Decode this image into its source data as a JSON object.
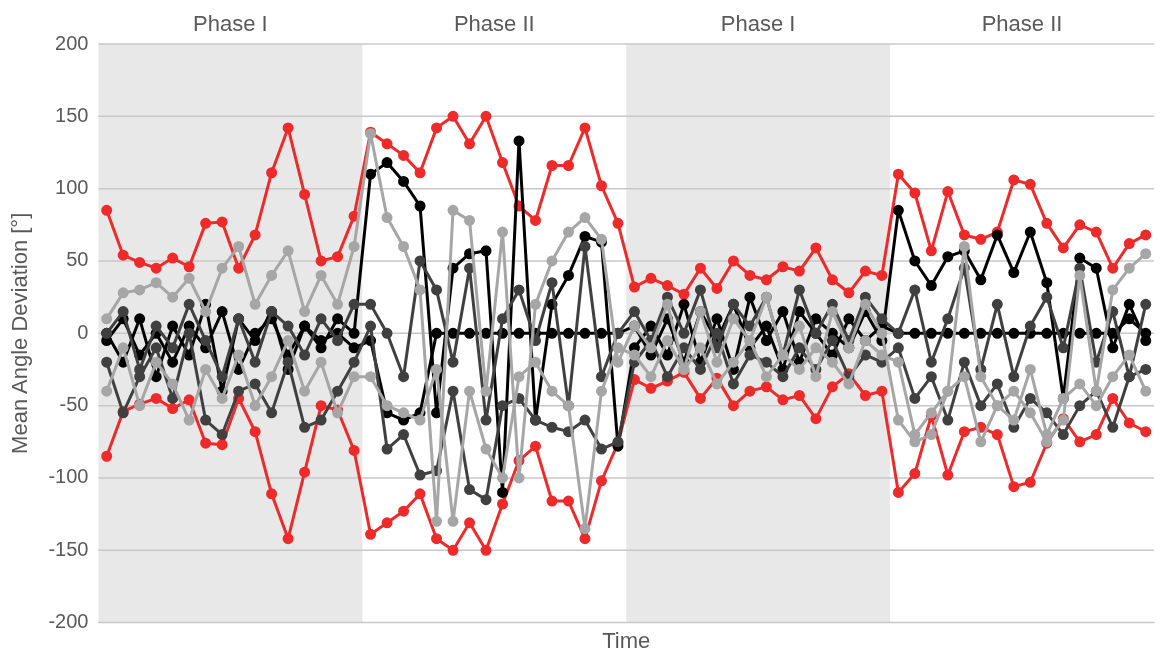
{
  "chart_data": {
    "type": "line",
    "xlabel": "Time",
    "ylabel": "Mean Angle Deviation [°]",
    "categories": [
      null,
      null,
      null,
      null,
      null,
      null,
      null,
      null,
      null,
      null,
      null,
      null,
      null,
      null,
      null,
      null,
      null,
      null,
      null,
      null,
      null,
      null,
      null,
      null,
      null,
      null,
      null,
      null,
      null,
      null,
      null,
      null,
      null,
      null,
      null,
      null,
      null,
      null,
      null,
      null,
      null,
      null,
      null,
      null,
      null,
      null,
      null,
      null,
      null,
      null,
      null,
      null,
      null,
      null,
      null,
      null,
      null,
      null,
      null,
      null,
      null,
      null,
      null,
      null
    ],
    "ylim": [
      -200,
      200
    ],
    "yticks": [
      -200,
      -150,
      -100,
      -50,
      0,
      50,
      100,
      150,
      200
    ],
    "grid": "y",
    "legend": false,
    "tick_labels": "y",
    "marker": "circle",
    "line_style": "solid",
    "annotations": [
      "Phase I",
      "Phase II",
      "Phase I",
      "Phase II"
    ],
    "series": [
      {
        "color": "#a6a6a6",
        "values": [
          10,
          28,
          30,
          35,
          25,
          38,
          15,
          45,
          60,
          20,
          40,
          57,
          15,
          40,
          20,
          60,
          138,
          80,
          60,
          30,
          -130,
          85,
          78,
          -40,
          70,
          -100,
          20,
          50,
          70,
          80,
          65,
          -20,
          5,
          -10,
          20,
          -25,
          15,
          -20,
          10,
          -5,
          25,
          -15,
          5,
          -30,
          15,
          -10,
          20,
          0,
          -60,
          -75,
          -70,
          -40,
          60,
          -30,
          -50,
          -40,
          -55,
          -75,
          -60,
          40,
          -40,
          30,
          45,
          55
        ]
      },
      {
        "color": "#a6a6a6",
        "values": [
          -40,
          -10,
          -50,
          -20,
          -35,
          -60,
          -25,
          -45,
          -15,
          -50,
          -30,
          -5,
          -40,
          -20,
          -55,
          -30,
          -30,
          -50,
          -55,
          -60,
          -25,
          -130,
          -40,
          -80,
          -100,
          -30,
          -20,
          -40,
          -50,
          -135,
          -40,
          -10,
          -15,
          -30,
          -5,
          -25,
          -10,
          -35,
          -20,
          -5,
          -30,
          -15,
          -25,
          -10,
          -20,
          -35,
          -5,
          -15,
          -20,
          -70,
          -55,
          -40,
          -30,
          -75,
          -50,
          -60,
          -25,
          -70,
          -45,
          -35,
          -50,
          -30,
          -15,
          -40
        ]
      },
      {
        "color": "#404040",
        "values": [
          -20,
          -55,
          -30,
          -10,
          -45,
          0,
          -60,
          -70,
          -40,
          -35,
          -55,
          -20,
          -65,
          -60,
          -40,
          -20,
          5,
          -80,
          -70,
          -98,
          -95,
          -40,
          -108,
          -115,
          -50,
          -45,
          -60,
          -65,
          -68,
          -60,
          -80,
          -75,
          -20,
          -5,
          -30,
          -10,
          -25,
          0,
          -35,
          -15,
          -20,
          -30,
          -10,
          -25,
          -5,
          -30,
          -15,
          -20,
          -10,
          -45,
          -30,
          -60,
          -20,
          -50,
          -35,
          -65,
          -45,
          -55,
          -70,
          -50,
          -40,
          -65,
          -30,
          -25
        ]
      },
      {
        "color": "#404040",
        "values": [
          0,
          15,
          -25,
          5,
          -10,
          20,
          -5,
          -30,
          10,
          -20,
          15,
          5,
          -15,
          10,
          -5,
          20,
          20,
          0,
          -30,
          50,
          30,
          -20,
          45,
          -60,
          10,
          30,
          -5,
          35,
          -50,
          60,
          -30,
          0,
          15,
          -5,
          25,
          0,
          30,
          -10,
          20,
          5,
          25,
          -15,
          30,
          0,
          20,
          -5,
          25,
          10,
          0,
          30,
          -20,
          10,
          45,
          -25,
          20,
          -30,
          5,
          25,
          -10,
          45,
          -20,
          15,
          -30,
          20
        ]
      },
      {
        "color": "#000000",
        "values": [
          0,
          -20,
          10,
          -30,
          5,
          -15,
          20,
          -40,
          10,
          -5,
          15,
          -25,
          5,
          -10,
          10,
          0,
          110,
          118,
          105,
          88,
          -55,
          45,
          55,
          57,
          -110,
          133,
          -60,
          20,
          40,
          67,
          63,
          -78,
          -10,
          5,
          -15,
          20,
          -20,
          10,
          -25,
          25,
          -5,
          15,
          -20,
          10,
          0,
          -10,
          15,
          -5,
          85,
          50,
          33,
          53,
          57,
          37,
          68,
          42,
          70,
          35,
          -45,
          52,
          45,
          -10,
          20,
          -5
        ]
      },
      {
        "color": "#000000",
        "values": [
          -5,
          10,
          -15,
          0,
          -20,
          5,
          -10,
          15,
          -25,
          0,
          10,
          -15,
          5,
          -5,
          0,
          -10,
          -5,
          -55,
          -60,
          -55,
          0,
          0,
          0,
          0,
          0,
          0,
          0,
          0,
          0,
          0,
          0,
          0,
          5,
          -15,
          10,
          -20,
          15,
          -5,
          20,
          -10,
          5,
          -25,
          15,
          0,
          -15,
          10,
          -5,
          5,
          0,
          0,
          0,
          0,
          0,
          0,
          0,
          0,
          0,
          0,
          0,
          0,
          0,
          0,
          10,
          0
        ]
      },
      {
        "color": "#ee2a2a",
        "values": [
          85,
          54,
          49,
          45,
          52,
          46,
          76,
          77,
          45,
          68,
          111,
          142,
          96,
          50,
          53,
          81,
          139,
          131,
          123,
          111,
          142,
          150,
          131,
          150,
          118,
          88,
          78,
          116,
          116,
          142,
          102,
          76,
          32,
          38,
          33,
          27,
          45,
          31,
          50,
          40,
          37,
          46,
          43,
          59,
          37,
          28,
          43,
          40,
          110,
          97,
          57,
          98,
          68,
          65,
          70,
          106,
          103,
          76,
          59,
          75,
          70,
          45,
          62,
          68
        ]
      },
      {
        "color": "#ee2a2a",
        "values": [
          -85,
          -54,
          -49,
          -45,
          -52,
          -46,
          -76,
          -77,
          -45,
          -68,
          -111,
          -142,
          -96,
          -50,
          -53,
          -81,
          -139,
          -131,
          -123,
          -111,
          -142,
          -150,
          -131,
          -150,
          -118,
          -88,
          -78,
          -116,
          -116,
          -142,
          -102,
          -76,
          -32,
          -38,
          -33,
          -27,
          -45,
          -31,
          -50,
          -40,
          -37,
          -46,
          -43,
          -59,
          -37,
          -28,
          -43,
          -40,
          -110,
          -97,
          -57,
          -98,
          -68,
          -65,
          -70,
          -106,
          -103,
          -76,
          -59,
          -75,
          -70,
          -45,
          -62,
          -68
        ]
      }
    ]
  }
}
